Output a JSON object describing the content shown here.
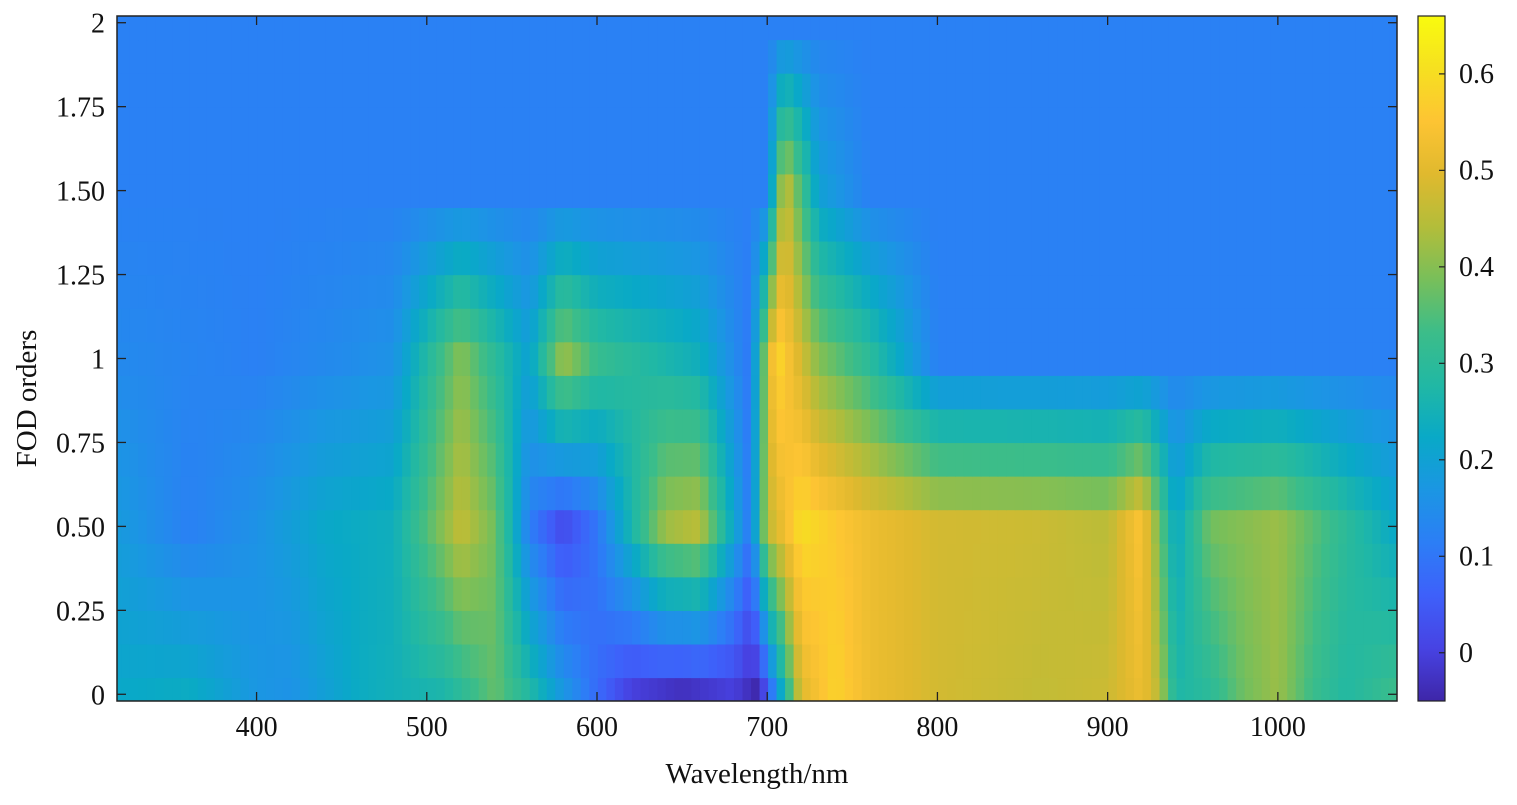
{
  "chart_data": {
    "type": "heatmap",
    "title": "",
    "xlabel": "Wavelength/nm",
    "ylabel": "FOD  orders",
    "xlim": [
      318,
      1070
    ],
    "ylim": [
      -0.02,
      2.02
    ],
    "x_ticks": [
      400,
      500,
      600,
      700,
      800,
      900,
      1000
    ],
    "x_tick_labels": [
      "400",
      "500",
      "600",
      "700",
      "800",
      "900",
      "1000"
    ],
    "y_ticks": [
      0,
      0.25,
      0.5,
      0.75,
      1,
      1.25,
      1.5,
      1.75,
      2
    ],
    "y_tick_labels": [
      "0",
      "0.25",
      "0.50",
      "0.75",
      "1",
      "1.25",
      "1.50",
      "1.75",
      "2"
    ],
    "fod_orders": [
      0,
      0.1,
      0.2,
      0.3,
      0.4,
      0.5,
      0.6,
      0.7,
      0.8,
      0.9,
      1,
      1.1,
      1.2,
      1.3,
      1.4,
      1.5,
      1.6,
      1.7,
      1.8,
      1.9,
      2
    ],
    "wavelength_step_nm": 5,
    "colorbar": {
      "range": [
        -0.05,
        0.66
      ],
      "ticks": [
        0,
        0.1,
        0.2,
        0.3,
        0.4,
        0.5,
        0.6
      ],
      "tick_labels": [
        "0",
        "0.1",
        "0.2",
        "0.3",
        "0.4",
        "0.5",
        "0.6"
      ],
      "colormap": "parula",
      "colors": [
        "#3e26a8",
        "#4743e3",
        "#3e60fa",
        "#2c7ef6",
        "#1b96e3",
        "#09a9c7",
        "#21b8a4",
        "#3cbd89",
        "#78bf5a",
        "#b3bd3a",
        "#e0b92e",
        "#fdc433",
        "#f6e020",
        "#f9fb0e"
      ]
    },
    "profiles": {
      "description_order_0": "correlation along wavelength at FOD order 0",
      "order_0": [
        [
          320,
          0.22
        ],
        [
          360,
          0.23
        ],
        [
          400,
          0.17
        ],
        [
          420,
          0.16
        ],
        [
          460,
          0.23
        ],
        [
          510,
          0.27
        ],
        [
          540,
          0.37
        ],
        [
          560,
          0.28
        ],
        [
          580,
          0.17
        ],
        [
          600,
          0.08
        ],
        [
          620,
          0.0
        ],
        [
          650,
          -0.03
        ],
        [
          680,
          0.0
        ],
        [
          695,
          -0.05
        ],
        [
          705,
          0.15
        ],
        [
          720,
          0.5
        ],
        [
          740,
          0.58
        ],
        [
          760,
          0.52
        ],
        [
          800,
          0.48
        ],
        [
          860,
          0.46
        ],
        [
          900,
          0.47
        ],
        [
          920,
          0.52
        ],
        [
          930,
          0.45
        ],
        [
          940,
          0.27
        ],
        [
          960,
          0.3
        ],
        [
          980,
          0.38
        ],
        [
          1000,
          0.42
        ],
        [
          1020,
          0.33
        ],
        [
          1040,
          0.28
        ],
        [
          1070,
          0.33
        ]
      ],
      "order_0_5": [
        [
          320,
          0.18
        ],
        [
          360,
          0.12
        ],
        [
          400,
          0.16
        ],
        [
          440,
          0.22
        ],
        [
          480,
          0.24
        ],
        [
          520,
          0.46
        ],
        [
          540,
          0.38
        ],
        [
          560,
          0.12
        ],
        [
          580,
          0.02
        ],
        [
          600,
          0.1
        ],
        [
          640,
          0.42
        ],
        [
          660,
          0.45
        ],
        [
          690,
          0.1
        ],
        [
          700,
          0.45
        ],
        [
          720,
          0.6
        ],
        [
          760,
          0.52
        ],
        [
          800,
          0.48
        ],
        [
          860,
          0.47
        ],
        [
          900,
          0.45
        ],
        [
          920,
          0.55
        ],
        [
          940,
          0.22
        ],
        [
          960,
          0.38
        ],
        [
          1000,
          0.42
        ],
        [
          1040,
          0.3
        ],
        [
          1070,
          0.22
        ]
      ],
      "order_1": [
        [
          320,
          0.14
        ],
        [
          400,
          0.12
        ],
        [
          480,
          0.16
        ],
        [
          520,
          0.4
        ],
        [
          560,
          0.2
        ],
        [
          580,
          0.42
        ],
        [
          600,
          0.32
        ],
        [
          660,
          0.24
        ],
        [
          690,
          0.1
        ],
        [
          705,
          0.6
        ],
        [
          730,
          0.4
        ],
        [
          760,
          0.3
        ],
        [
          800,
          0.12
        ],
        [
          860,
          0.12
        ],
        [
          920,
          0.12
        ],
        [
          1000,
          0.12
        ],
        [
          1070,
          0.12
        ]
      ],
      "order_1_5": [
        [
          320,
          0.12
        ],
        [
          700,
          0.12
        ],
        [
          710,
          0.48
        ],
        [
          730,
          0.2
        ],
        [
          760,
          0.12
        ],
        [
          1070,
          0.12
        ]
      ],
      "order_2": [
        [
          320,
          0.12
        ],
        [
          1070,
          0.12
        ]
      ]
    }
  }
}
